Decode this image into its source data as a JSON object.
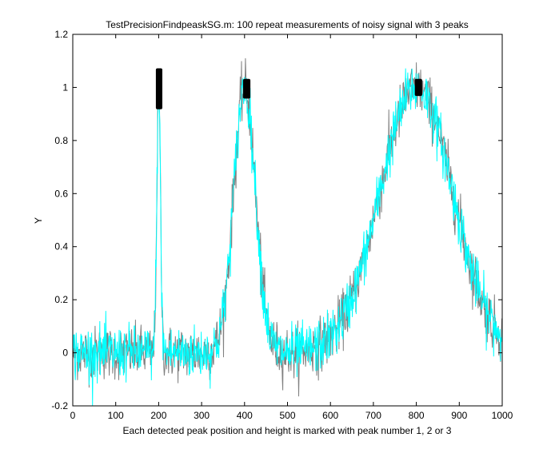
{
  "chart_data": {
    "type": "line",
    "title": "TestPrecisionFindpeaskSG.m: 100 repeat measurements of noisy signal with 3 peaks",
    "xlabel": "Each detected peak position and height is marked with peak number 1, 2 or 3",
    "ylabel": "Y",
    "xlim": [
      0,
      1000
    ],
    "ylim": [
      -0.2,
      1.2
    ],
    "xticks": [
      0,
      100,
      200,
      300,
      400,
      500,
      600,
      700,
      800,
      900,
      1000
    ],
    "yticks": [
      -0.2,
      0,
      0.2,
      0.4,
      0.6,
      0.8,
      1,
      1.2
    ],
    "ytick_labels": [
      "-0.2",
      "0",
      "0.2",
      "0.4",
      "0.6",
      "0.8",
      "1",
      "1.2"
    ],
    "grid": false,
    "signal": {
      "points": 1000,
      "noise_std": 0.05,
      "peaks": [
        {
          "position": 200,
          "height": 1.0,
          "width": 10
        },
        {
          "position": 400,
          "height": 1.0,
          "width": 60
        },
        {
          "position": 800,
          "height": 1.0,
          "width": 200
        }
      ]
    },
    "series": [
      {
        "name": "noisy signal (gray)",
        "color": "#808080"
      },
      {
        "name": "noisy signal (cyan)",
        "color": "#00ffff"
      }
    ],
    "peak_markers": [
      {
        "label": "1",
        "x_range": [
          199,
          203
        ],
        "y_range": [
          0.93,
          1.06
        ]
      },
      {
        "label": "2",
        "x_range": [
          402,
          408
        ],
        "y_range": [
          0.97,
          1.02
        ]
      },
      {
        "label": "3",
        "x_range": [
          802,
          808
        ],
        "y_range": [
          0.98,
          1.02
        ]
      }
    ]
  }
}
